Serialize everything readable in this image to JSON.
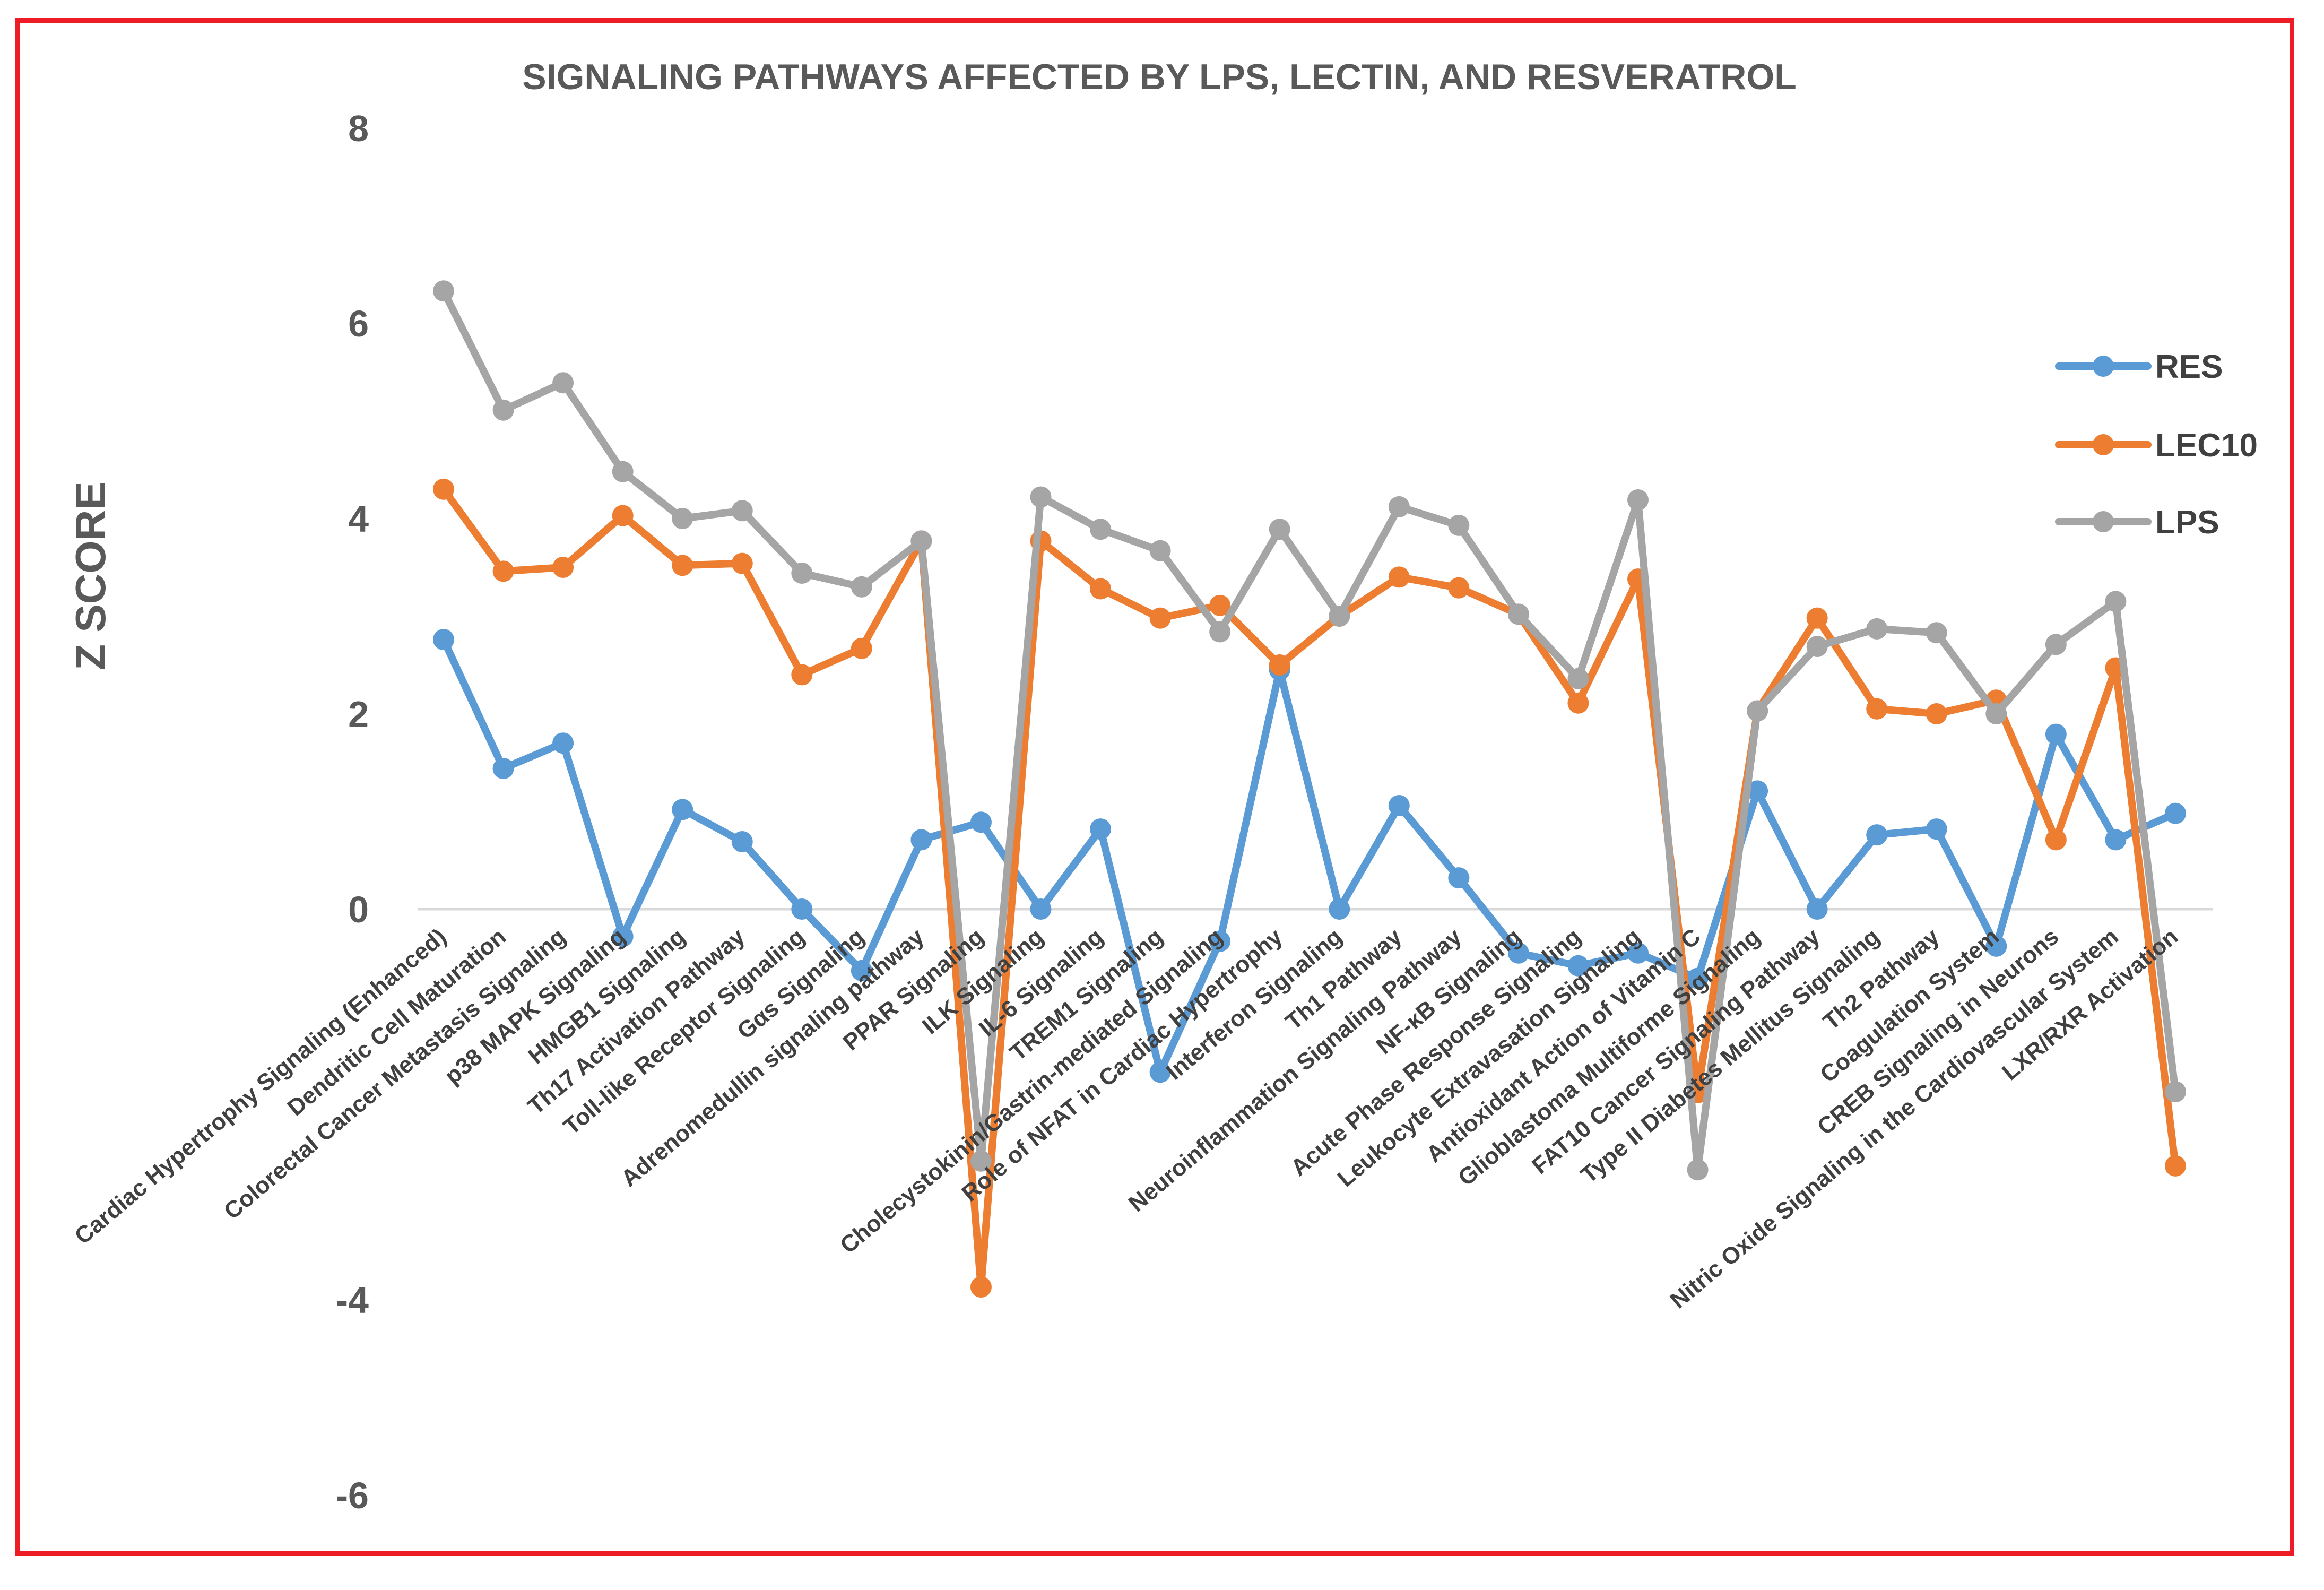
{
  "chart_data": {
    "type": "line",
    "title": "SIGNALING PATHWAYS AFFECTED BY LPS, LECTIN, AND RESVERATROL",
    "xlabel": "",
    "ylabel": "Z SCORE",
    "ylim": [
      -6,
      8
    ],
    "yticks": [
      8,
      6,
      4,
      2,
      0,
      -4,
      -6
    ],
    "grid": false,
    "legend_position": "right",
    "categories": [
      "Cardiac Hypertrophy Signaling (Enhanced)",
      "Dendritic Cell Maturation",
      "Colorectal Cancer Metastasis Signaling",
      "p38 MAPK Signaling",
      "HMGB1 Signaling",
      "Th17 Activation Pathway",
      "Toll-like Receptor Signaling",
      "Gαs Signaling",
      "Adrenomedullin signaling pathway",
      "PPAR Signaling",
      "ILK Signaling",
      "IL-6 Signaling",
      "TREM1 Signaling",
      "Cholecystokinin/Gastrin-mediated Signaling",
      "Role of NFAT in Cardiac Hypertrophy",
      "Interferon Signaling",
      "Th1 Pathway",
      "Neuroinflammation Signaling Pathway",
      "NF-κB Signaling",
      "Acute Phase Response Signaling",
      "Leukocyte Extravasation Signaling",
      "Antioxidant Action of Vitamin C",
      "Glioblastoma Multiforme Signaling",
      "FAT10 Cancer Signaling Pathway",
      "Type II Diabetes Mellitus Signaling",
      "Th2 Pathway",
      "Coagulation System",
      "CREB Signaling in Neurons",
      "Nitric Oxide Signaling in the Cardiovascular System",
      "LXR/RXR Activation"
    ],
    "series": [
      {
        "name": "RES",
        "color": "#5b9bd5",
        "values": [
          2.76,
          1.44,
          1.7,
          -0.28,
          1.02,
          0.69,
          0.0,
          -0.63,
          0.71,
          0.89,
          0.0,
          0.82,
          -1.67,
          -0.33,
          2.45,
          0.0,
          1.06,
          0.32,
          -0.45,
          -0.58,
          -0.45,
          -0.71,
          1.21,
          0.0,
          0.76,
          0.82,
          -0.38,
          1.79,
          0.71,
          0.98
        ]
      },
      {
        "name": "LEC10",
        "color": "#ed7d31",
        "values": [
          4.3,
          3.46,
          3.5,
          4.03,
          3.52,
          3.54,
          2.4,
          2.67,
          3.77,
          -3.87,
          3.77,
          3.28,
          2.98,
          3.11,
          2.5,
          3.0,
          3.4,
          3.29,
          3.02,
          2.11,
          3.38,
          -1.88,
          2.03,
          2.98,
          2.05,
          2.0,
          2.14,
          0.71,
          2.47,
          -2.63
        ]
      },
      {
        "name": "LPS",
        "color": "#a5a5a5",
        "values": [
          6.33,
          5.11,
          5.39,
          4.48,
          4.0,
          4.08,
          3.44,
          3.3,
          3.77,
          -2.58,
          4.22,
          3.89,
          3.67,
          2.84,
          3.89,
          3.0,
          4.12,
          3.93,
          3.02,
          2.36,
          4.19,
          -2.67,
          2.03,
          2.69,
          2.87,
          2.83,
          2.0,
          2.71,
          3.15,
          -1.87
        ]
      }
    ]
  }
}
